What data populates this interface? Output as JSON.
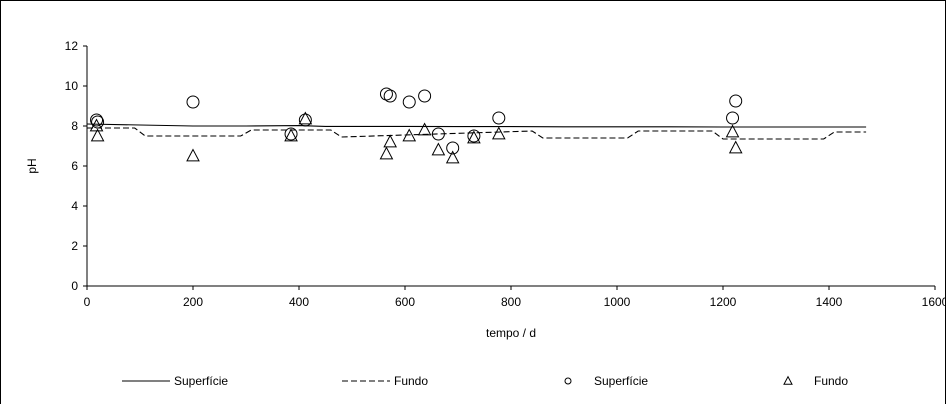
{
  "chart_data": {
    "type": "scatter",
    "title": "",
    "xlabel": "tempo / d",
    "ylabel": "pH",
    "xlim": [
      0,
      1600
    ],
    "ylim": [
      0,
      12
    ],
    "x_ticks": [
      0,
      200,
      400,
      600,
      800,
      1000,
      1200,
      1400,
      1600
    ],
    "y_ticks": [
      0,
      2,
      4,
      6,
      8,
      10,
      12
    ],
    "grid": false,
    "legend_position": "bottom",
    "series": [
      {
        "name": "Superfície",
        "kind": "line",
        "style": "solid",
        "color": "#000000",
        "x": [
          0,
          100,
          200,
          300,
          400,
          450,
          500,
          600,
          700,
          800,
          900,
          1000,
          1100,
          1200,
          1300,
          1400,
          1470
        ],
        "y": [
          8.1,
          8.05,
          8.0,
          8.0,
          8.02,
          7.98,
          7.98,
          7.98,
          7.97,
          7.97,
          7.96,
          7.96,
          7.96,
          7.95,
          7.95,
          7.95,
          7.95
        ]
      },
      {
        "name": "Fundo",
        "kind": "line",
        "style": "dashed",
        "color": "#000000",
        "x": [
          0,
          90,
          110,
          290,
          310,
          460,
          480,
          840,
          860,
          1020,
          1040,
          1180,
          1200,
          1390,
          1410,
          1470
        ],
        "y": [
          7.9,
          7.9,
          7.5,
          7.5,
          7.8,
          7.8,
          7.45,
          7.75,
          7.4,
          7.4,
          7.75,
          7.75,
          7.35,
          7.35,
          7.7,
          7.7
        ]
      },
      {
        "name": "Superfície",
        "kind": "marker",
        "marker": "circle",
        "color": "#000000",
        "x": [
          18,
          20,
          200,
          385,
          412,
          565,
          572,
          608,
          637,
          663,
          690,
          730,
          777,
          1218,
          1224
        ],
        "y": [
          8.3,
          8.2,
          9.2,
          7.6,
          8.3,
          9.6,
          9.5,
          9.2,
          9.5,
          7.6,
          6.9,
          7.5,
          8.4,
          8.4,
          9.25
        ]
      },
      {
        "name": "Fundo",
        "kind": "marker",
        "marker": "triangle",
        "color": "#000000",
        "x": [
          18,
          20,
          200,
          385,
          412,
          565,
          572,
          608,
          637,
          663,
          690,
          730,
          777,
          1218,
          1224
        ],
        "y": [
          8.0,
          7.5,
          6.5,
          7.5,
          8.35,
          6.6,
          7.2,
          7.5,
          7.8,
          6.8,
          6.4,
          7.4,
          7.6,
          7.7,
          6.9
        ]
      }
    ]
  }
}
